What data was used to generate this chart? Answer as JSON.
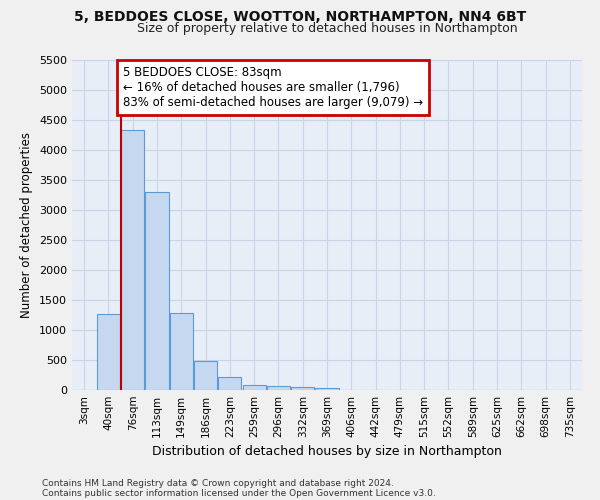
{
  "title_line1": "5, BEDDOES CLOSE, WOOTTON, NORTHAMPTON, NN4 6BT",
  "title_line2": "Size of property relative to detached houses in Northampton",
  "xlabel": "Distribution of detached houses by size in Northampton",
  "ylabel": "Number of detached properties",
  "bar_labels": [
    "3sqm",
    "40sqm",
    "76sqm",
    "113sqm",
    "149sqm",
    "186sqm",
    "223sqm",
    "259sqm",
    "296sqm",
    "332sqm",
    "369sqm",
    "406sqm",
    "442sqm",
    "479sqm",
    "515sqm",
    "552sqm",
    "589sqm",
    "625sqm",
    "662sqm",
    "698sqm",
    "735sqm"
  ],
  "bar_values": [
    0,
    1270,
    4330,
    3300,
    1280,
    490,
    215,
    90,
    65,
    50,
    40,
    0,
    0,
    0,
    0,
    0,
    0,
    0,
    0,
    0,
    0
  ],
  "bar_color": "#c5d8f0",
  "bar_edge_color": "#5b9bd5",
  "vline_x_idx": 2,
  "vline_color": "#bb0000",
  "ylim": [
    0,
    5500
  ],
  "yticks": [
    0,
    500,
    1000,
    1500,
    2000,
    2500,
    3000,
    3500,
    4000,
    4500,
    5000,
    5500
  ],
  "annotation_text": "5 BEDDOES CLOSE: 83sqm\n← 16% of detached houses are smaller (1,796)\n83% of semi-detached houses are larger (9,079) →",
  "annotation_box_color": "#ffffff",
  "annotation_border_color": "#cc0000",
  "footnote1": "Contains HM Land Registry data © Crown copyright and database right 2024.",
  "footnote2": "Contains public sector information licensed under the Open Government Licence v3.0.",
  "bg_color": "#e8eef8",
  "fig_bg_color": "#f0f0f0",
  "grid_color": "#c8d4e8"
}
